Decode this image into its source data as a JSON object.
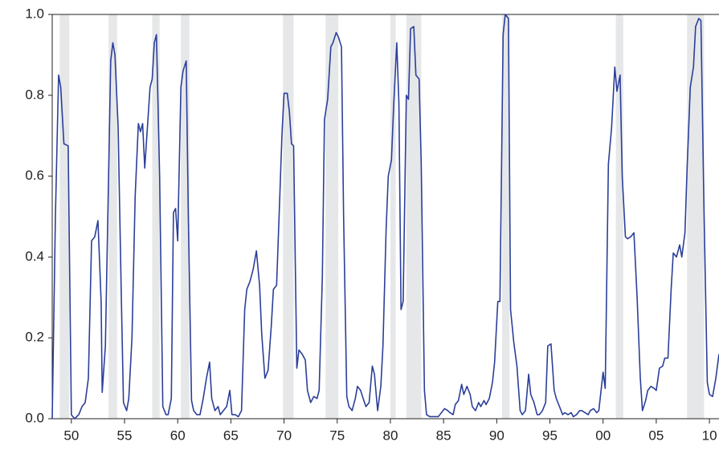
{
  "chart_data": {
    "type": "line",
    "xlim": [
      1948.2,
      2010.9
    ],
    "ylim": [
      0,
      1
    ],
    "xticks": [
      {
        "value": 1950,
        "label": "50"
      },
      {
        "value": 1955,
        "label": "55"
      },
      {
        "value": 1960,
        "label": "60"
      },
      {
        "value": 1965,
        "label": "65"
      },
      {
        "value": 1970,
        "label": "70"
      },
      {
        "value": 1975,
        "label": "75"
      },
      {
        "value": 1980,
        "label": "80"
      },
      {
        "value": 1985,
        "label": "85"
      },
      {
        "value": 1990,
        "label": "90"
      },
      {
        "value": 1995,
        "label": "95"
      },
      {
        "value": 2000,
        "label": "00"
      },
      {
        "value": 2005,
        "label": "05"
      },
      {
        "value": 2010,
        "label": "10"
      }
    ],
    "yticks": [
      {
        "value": 0,
        "label": "0.0"
      },
      {
        "value": 0.2,
        "label": "0.2"
      },
      {
        "value": 0.4,
        "label": "0.4"
      },
      {
        "value": 0.6,
        "label": "0.6"
      },
      {
        "value": 0.8,
        "label": "0.8"
      },
      {
        "value": 1,
        "label": "1.0"
      }
    ],
    "shaded_periods": [
      [
        1948.9,
        1949.8
      ],
      [
        1953.5,
        1954.3
      ],
      [
        1957.6,
        1958.3
      ],
      [
        1960.3,
        1961.1
      ],
      [
        1969.9,
        1970.9
      ],
      [
        1973.9,
        1975.1
      ],
      [
        1980.0,
        1980.5
      ],
      [
        1981.5,
        1982.9
      ],
      [
        1990.5,
        1991.2
      ],
      [
        2001.2,
        2001.9
      ],
      [
        2007.9,
        2009.5
      ]
    ],
    "shade_color": "#e6e7e9",
    "x": [
      1948.2,
      1948.5,
      1948.8,
      1949.0,
      1949.3,
      1949.7,
      1950.0,
      1950.3,
      1950.7,
      1951.0,
      1951.3,
      1951.6,
      1951.9,
      1952.2,
      1952.5,
      1952.8,
      1952.9,
      1953.2,
      1953.5,
      1953.7,
      1953.9,
      1954.1,
      1954.4,
      1954.7,
      1954.9,
      1955.2,
      1955.4,
      1955.7,
      1956.0,
      1956.3,
      1956.5,
      1956.7,
      1956.9,
      1957.2,
      1957.4,
      1957.6,
      1957.8,
      1958.0,
      1958.3,
      1958.6,
      1958.9,
      1959.1,
      1959.4,
      1959.6,
      1959.8,
      1960.0,
      1960.3,
      1960.5,
      1960.8,
      1961.0,
      1961.3,
      1961.5,
      1961.8,
      1962.1,
      1962.4,
      1962.7,
      1963.0,
      1963.2,
      1963.5,
      1963.8,
      1964.0,
      1964.3,
      1964.6,
      1964.9,
      1965.1,
      1965.4,
      1965.7,
      1966.0,
      1966.3,
      1966.5,
      1966.8,
      1967.1,
      1967.4,
      1967.7,
      1967.9,
      1968.2,
      1968.5,
      1968.8,
      1969.0,
      1969.3,
      1969.6,
      1969.8,
      1970.0,
      1970.3,
      1970.5,
      1970.7,
      1970.9,
      1971.2,
      1971.4,
      1971.7,
      1972.0,
      1972.2,
      1972.5,
      1972.8,
      1973.1,
      1973.3,
      1973.6,
      1973.8,
      1974.1,
      1974.4,
      1974.6,
      1974.9,
      1975.1,
      1975.4,
      1975.6,
      1975.9,
      1976.1,
      1976.4,
      1976.7,
      1976.9,
      1977.2,
      1977.5,
      1977.7,
      1978.0,
      1978.3,
      1978.5,
      1978.8,
      1979.1,
      1979.3,
      1979.6,
      1979.8,
      1980.1,
      1980.3,
      1980.6,
      1980.8,
      1981.0,
      1981.2,
      1981.5,
      1981.7,
      1981.9,
      1982.2,
      1982.4,
      1982.7,
      1982.9,
      1983.2,
      1983.4,
      1983.7,
      1984.0,
      1984.5,
      1984.8,
      1985.1,
      1985.4,
      1985.6,
      1985.9,
      1986.1,
      1986.4,
      1986.7,
      1986.9,
      1987.2,
      1987.5,
      1987.7,
      1988.0,
      1988.3,
      1988.5,
      1988.8,
      1989.0,
      1989.3,
      1989.6,
      1989.8,
      1990.1,
      1990.3,
      1990.6,
      1990.8,
      1991.1,
      1991.3,
      1991.6,
      1991.9,
      1992.2,
      1992.4,
      1992.7,
      1993.0,
      1993.2,
      1993.5,
      1993.8,
      1994.0,
      1994.3,
      1994.6,
      1994.8,
      1995.1,
      1995.4,
      1995.6,
      1995.9,
      1996.2,
      1996.4,
      1996.7,
      1997.0,
      1997.2,
      1997.5,
      1997.8,
      1998.0,
      1998.3,
      1998.6,
      1998.8,
      1999.1,
      1999.4,
      1999.6,
      2000.0,
      2000.2,
      2000.5,
      2000.8,
      2001.1,
      2001.3,
      2001.6,
      2001.8,
      2002.1,
      2002.3,
      2002.6,
      2002.9,
      2003.2,
      2003.5,
      2003.7,
      2004.0,
      2004.2,
      2004.5,
      2004.8,
      2005.0,
      2005.3,
      2005.6,
      2005.8,
      2006.1,
      2006.4,
      2006.6,
      2006.9,
      2007.2,
      2007.4,
      2007.7,
      2007.9,
      2008.2,
      2008.5,
      2008.7,
      2009.0,
      2009.2,
      2009.5,
      2009.8,
      2010.0,
      2010.3,
      2010.6,
      2010.9
    ],
    "series": [
      {
        "color": "#2b3f99",
        "values": [
          0.0,
          0.5,
          0.85,
          0.82,
          0.68,
          0.675,
          0.01,
          0.0,
          0.01,
          0.03,
          0.04,
          0.1,
          0.44,
          0.45,
          0.49,
          0.29,
          0.065,
          0.18,
          0.6,
          0.885,
          0.93,
          0.9,
          0.72,
          0.3,
          0.04,
          0.02,
          0.05,
          0.2,
          0.55,
          0.73,
          0.71,
          0.73,
          0.62,
          0.74,
          0.82,
          0.84,
          0.93,
          0.95,
          0.6,
          0.03,
          0.01,
          0.01,
          0.05,
          0.51,
          0.52,
          0.44,
          0.82,
          0.86,
          0.885,
          0.5,
          0.045,
          0.02,
          0.01,
          0.01,
          0.05,
          0.1,
          0.14,
          0.05,
          0.02,
          0.03,
          0.01,
          0.02,
          0.03,
          0.07,
          0.01,
          0.01,
          0.005,
          0.02,
          0.27,
          0.32,
          0.34,
          0.37,
          0.415,
          0.33,
          0.21,
          0.1,
          0.12,
          0.23,
          0.32,
          0.33,
          0.55,
          0.7,
          0.805,
          0.805,
          0.76,
          0.68,
          0.675,
          0.125,
          0.17,
          0.16,
          0.145,
          0.07,
          0.04,
          0.055,
          0.05,
          0.07,
          0.35,
          0.74,
          0.79,
          0.92,
          0.93,
          0.955,
          0.945,
          0.92,
          0.5,
          0.055,
          0.03,
          0.02,
          0.05,
          0.08,
          0.07,
          0.045,
          0.03,
          0.04,
          0.13,
          0.11,
          0.02,
          0.08,
          0.18,
          0.47,
          0.6,
          0.64,
          0.77,
          0.93,
          0.78,
          0.27,
          0.29,
          0.8,
          0.79,
          0.965,
          0.97,
          0.85,
          0.84,
          0.63,
          0.07,
          0.01,
          0.005,
          0.005,
          0.005,
          0.015,
          0.025,
          0.02,
          0.015,
          0.01,
          0.035,
          0.045,
          0.085,
          0.06,
          0.08,
          0.06,
          0.03,
          0.02,
          0.04,
          0.03,
          0.045,
          0.035,
          0.05,
          0.09,
          0.14,
          0.29,
          0.29,
          0.95,
          1.0,
          0.99,
          0.27,
          0.19,
          0.13,
          0.02,
          0.01,
          0.02,
          0.11,
          0.06,
          0.04,
          0.01,
          0.01,
          0.02,
          0.04,
          0.18,
          0.185,
          0.07,
          0.05,
          0.03,
          0.01,
          0.015,
          0.01,
          0.015,
          0.005,
          0.01,
          0.02,
          0.02,
          0.015,
          0.01,
          0.02,
          0.025,
          0.015,
          0.02,
          0.115,
          0.075,
          0.63,
          0.72,
          0.87,
          0.81,
          0.85,
          0.6,
          0.45,
          0.445,
          0.45,
          0.46,
          0.3,
          0.1,
          0.02,
          0.045,
          0.07,
          0.08,
          0.075,
          0.07,
          0.125,
          0.13,
          0.15,
          0.15,
          0.32,
          0.41,
          0.4,
          0.43,
          0.4,
          0.46,
          0.62,
          0.82,
          0.87,
          0.97,
          0.99,
          0.985,
          0.5,
          0.09,
          0.06,
          0.055,
          0.1,
          0.16
        ]
      }
    ]
  }
}
